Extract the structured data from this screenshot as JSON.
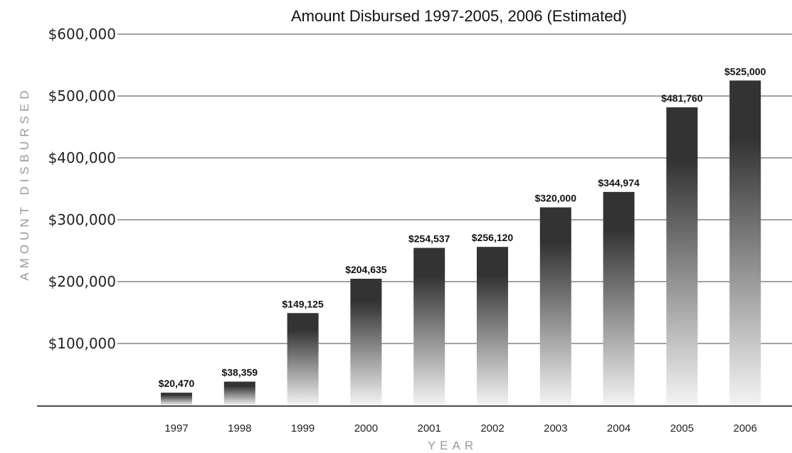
{
  "chart_data": {
    "type": "bar",
    "title": "Amount Disbursed 1997-2005, 2006 (Estimated)",
    "xlabel": "YEAR",
    "ylabel": "AMOUNT DISBURSED",
    "categories": [
      "1997",
      "1998",
      "1999",
      "2000",
      "2001",
      "2002",
      "2003",
      "2004",
      "2005",
      "2006"
    ],
    "values": [
      20470,
      38359,
      149125,
      204635,
      254537,
      256120,
      320000,
      344974,
      481760,
      525000
    ],
    "value_labels": [
      "$20,470",
      "$38,359",
      "$149,125",
      "$204,635",
      "$254,537",
      "$256,120",
      "$320,000",
      "$344,974",
      "$481,760",
      "$525,000"
    ],
    "ylim": [
      0,
      600000
    ],
    "yticks": [
      100000,
      200000,
      300000,
      400000,
      500000,
      600000
    ],
    "ytick_labels": [
      "$100,000",
      "$200,000",
      "$300,000",
      "$400,000",
      "$500,000",
      "$600,000"
    ],
    "grid": true,
    "legend": "none",
    "colors": {
      "bar_top": "#333333",
      "bar_bottom": "#f4f4f4",
      "grid": "#444444",
      "axis_label": "#999999"
    }
  }
}
